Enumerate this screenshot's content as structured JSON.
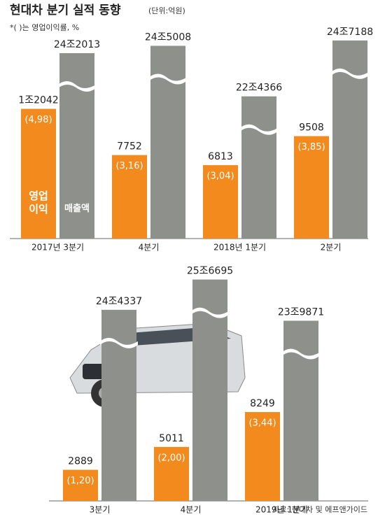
{
  "chart_data": [
    {
      "type": "bar",
      "title": "현대차 분기 실적 동향",
      "subtitle": "(단위:억원)",
      "note": "*( )는 영업이익률, %",
      "categories": [
        "2017년 3분기",
        "4분기",
        "2018년 1분기",
        "2분기"
      ],
      "series": [
        {
          "name": "영업이익",
          "color": "#f28a1e",
          "values": [
            12042,
            7752,
            6813,
            9508
          ],
          "value_labels": [
            "1조2042",
            "7752",
            "6813",
            "9508"
          ],
          "margins": [
            4.98,
            3.16,
            3.04,
            3.85
          ],
          "margin_labels": [
            "(4,98)",
            "(3,16)",
            "(3,04)",
            "(3,85)"
          ]
        },
        {
          "name": "매출액",
          "color": "#8e908b",
          "values": [
            242013,
            245008,
            224366,
            247188
          ],
          "value_labels": [
            "24조2013",
            "24조5008",
            "22조4366",
            "24조7188"
          ]
        }
      ]
    },
    {
      "type": "bar",
      "categories": [
        "3분기",
        "4분기",
        "2019년 1분기"
      ],
      "series": [
        {
          "name": "영업이익",
          "color": "#f28a1e",
          "values": [
            2889,
            5011,
            8249
          ],
          "value_labels": [
            "2889",
            "5011",
            "8249"
          ],
          "margins": [
            1.2,
            2.0,
            3.44
          ],
          "margin_labels": [
            "(1,20)",
            "(2,00)",
            "(3,44)"
          ]
        },
        {
          "name": "매출액",
          "color": "#8e908b",
          "values": [
            244337,
            256695,
            239871
          ],
          "value_labels": [
            "24조4337",
            "25조6695",
            "23조9871"
          ]
        }
      ],
      "source": "자료: 현대차 및 에프앤가이드"
    }
  ]
}
